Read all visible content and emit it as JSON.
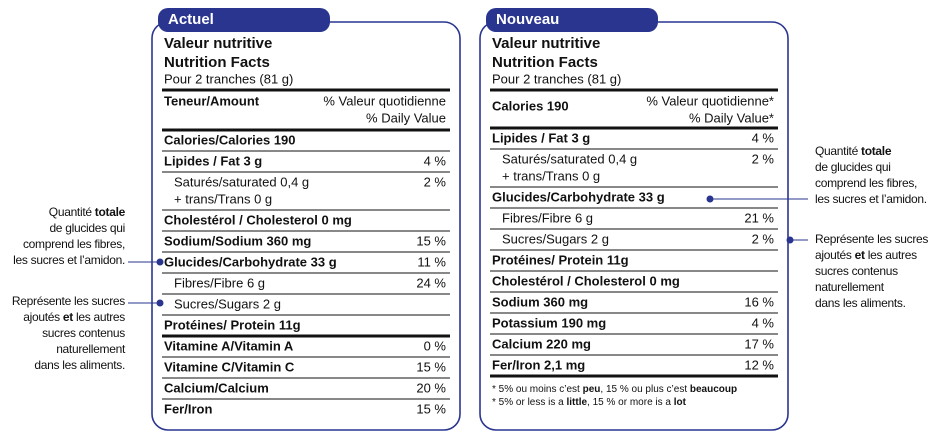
{
  "panels": [
    {
      "tab": "Actuel",
      "title_fr": "Valeur nutritive",
      "title_en": "Nutrition Facts",
      "serving": "Pour 2 tranches (81 g)",
      "head": {
        "label": "Teneur/Amount",
        "dv_lines": [
          "% Valeur quotidienne",
          "% Daily Value"
        ]
      },
      "rows": [
        {
          "lines": [
            "Calories/Calories 190"
          ],
          "bold": true
        },
        {
          "lines": [
            "Lipides / Fat 3 g"
          ],
          "dv": "4 %",
          "bold": true
        },
        {
          "lines": [
            "Saturés/saturated 0,4 g",
            "+ trans/Trans 0 g"
          ],
          "dv": "2 %",
          "indent": true
        },
        {
          "lines": [
            "Cholestérol / Cholesterol 0 mg"
          ],
          "bold": true
        },
        {
          "lines": [
            "Sodium/Sodium 360 mg"
          ],
          "dv": "15 %",
          "bold": true
        },
        {
          "lines": [
            "Glucides/Carbohydrate 33 g"
          ],
          "dv": "11 %",
          "bold": true
        },
        {
          "lines": [
            "Fibres/Fibre 6 g"
          ],
          "dv": "24 %",
          "indent": true
        },
        {
          "lines": [
            "Sucres/Sugars 2 g"
          ],
          "indent": true
        },
        {
          "lines": [
            "Protéines/ Protein 11g"
          ],
          "bold": true,
          "thick_below": true
        },
        {
          "lines": [
            "Vitamine A/Vitamin A"
          ],
          "dv": "0 %",
          "bold": true
        },
        {
          "lines": [
            "Vitamine C/Vitamin C"
          ],
          "dv": "15 %",
          "bold": true
        },
        {
          "lines": [
            "Calcium/Calcium"
          ],
          "dv": "20 %",
          "bold": true
        },
        {
          "lines": [
            "Fer/Iron"
          ],
          "dv": "15 %",
          "bold": true,
          "no_rule": true
        }
      ]
    },
    {
      "tab": "Nouveau",
      "title_fr": "Valeur nutritive",
      "title_en": "Nutrition Facts",
      "serving": "Pour 2 tranches (81 g)",
      "head": {
        "label": "Calories 190",
        "dv_lines": [
          "% Valeur quotidienne*",
          "% Daily Value*"
        ]
      },
      "rows": [
        {
          "lines": [
            "Lipides / Fat 3 g"
          ],
          "dv": "4 %",
          "bold": true
        },
        {
          "lines": [
            "Saturés/saturated 0,4 g",
            "+ trans/Trans 0 g"
          ],
          "dv": "2 %",
          "indent": true
        },
        {
          "lines": [
            "Glucides/Carbohydrate 33 g"
          ],
          "bold": true
        },
        {
          "lines": [
            "Fibres/Fibre 6 g"
          ],
          "dv": "21 %",
          "indent": true
        },
        {
          "lines": [
            "Sucres/Sugars 2 g"
          ],
          "dv": "2 %",
          "indent": true
        },
        {
          "lines": [
            "Protéines/ Protein 11g"
          ],
          "bold": true
        },
        {
          "lines": [
            "Cholestérol / Cholesterol 0 mg"
          ],
          "bold": true
        },
        {
          "lines": [
            "Sodium 360 mg"
          ],
          "dv": "16 %",
          "bold": true
        },
        {
          "lines": [
            "Potassium 190 mg"
          ],
          "dv": "4 %",
          "bold": true
        },
        {
          "lines": [
            "Calcium 220 mg"
          ],
          "dv": "17 %",
          "bold": true
        },
        {
          "lines": [
            "Fer/Iron 2,1 mg"
          ],
          "dv": "12 %",
          "bold": true,
          "thick_below": true
        }
      ],
      "footnote": [
        [
          "* 5% ou moins c’est ",
          "peu",
          ", 15 % ou plus c’est ",
          "beaucoup"
        ],
        [
          "* 5% or less is a ",
          "little",
          ", 15 % or more is a ",
          "lot"
        ]
      ]
    }
  ],
  "annotations": {
    "left_carbs": [
      [
        "Quantité ",
        "totale"
      ],
      [
        "de glucides qui"
      ],
      [
        "comprend les fibres,"
      ],
      [
        "les sucres et l’amidon."
      ]
    ],
    "left_sugars": [
      [
        "Représente les sucres"
      ],
      [
        "ajoutés ",
        "et",
        " les autres"
      ],
      [
        "sucres contenus"
      ],
      [
        "naturellement"
      ],
      [
        "dans les aliments."
      ]
    ],
    "right_carbs": [
      [
        "Quantité ",
        "totale"
      ],
      [
        "de glucides qui"
      ],
      [
        "comprend les fibres,"
      ],
      [
        "les sucres et l’amidon."
      ]
    ],
    "right_sugars": [
      [
        "Représente les sucres"
      ],
      [
        "ajoutés ",
        "et",
        " les autres"
      ],
      [
        "sucres contenus"
      ],
      [
        "naturellement"
      ],
      [
        "dans les aliments."
      ]
    ]
  }
}
